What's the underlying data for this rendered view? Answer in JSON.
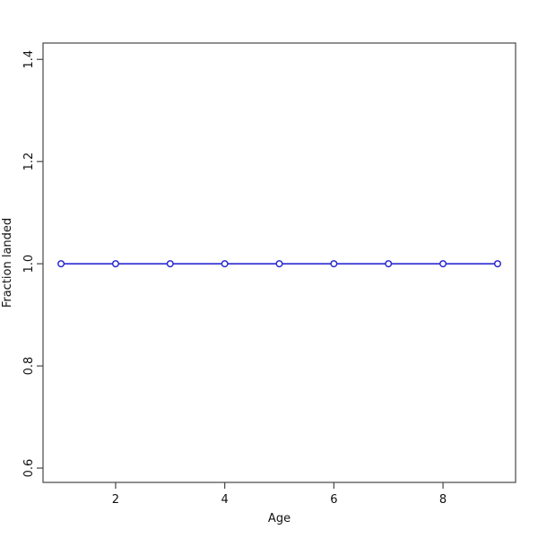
{
  "chart_data": {
    "type": "line",
    "title": "",
    "xlabel": "Age",
    "ylabel": "Fraction landed",
    "x": [
      1,
      2,
      3,
      4,
      5,
      6,
      7,
      8,
      9
    ],
    "series": [
      {
        "name": "Fraction landed",
        "values": [
          1.0,
          1.0,
          1.0,
          1.0,
          1.0,
          1.0,
          1.0,
          1.0,
          1.0
        ]
      }
    ],
    "xlim": [
      0.67,
      9.33
    ],
    "ylim": [
      0.572,
      1.432
    ],
    "x_ticks": {
      "values": [
        2,
        4,
        6,
        8
      ],
      "labels": [
        "2",
        "4",
        "6",
        "8"
      ]
    },
    "y_ticks": {
      "values": [
        0.6,
        0.8,
        1.0,
        1.2,
        1.4
      ],
      "labels": [
        "0.6",
        "0.8",
        "1.0",
        "1.2",
        "1.4"
      ]
    },
    "grid": false,
    "legend": "none",
    "marker": "open-circle",
    "style": {
      "line_color": "#2a2ad2",
      "marker_fill": "#ffffff",
      "axis_color": "#454545",
      "text_color": "#111111",
      "background": "#ffffff"
    }
  }
}
